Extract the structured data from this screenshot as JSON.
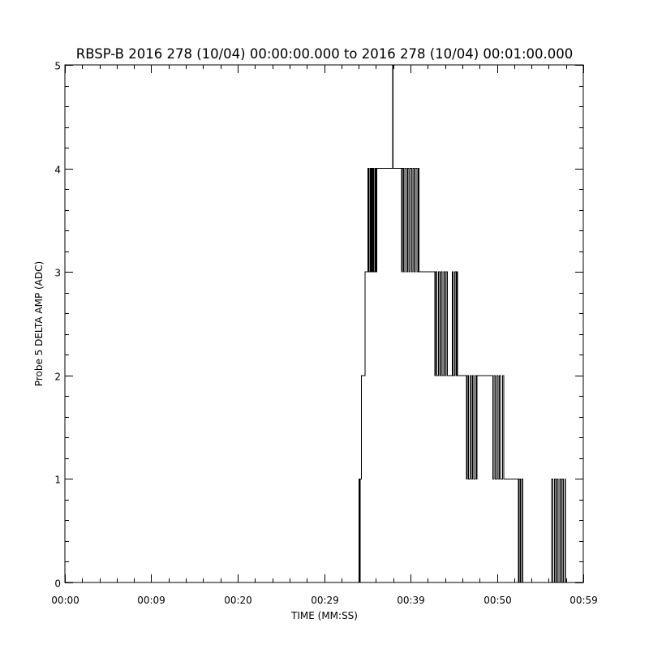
{
  "chart_data": {
    "type": "line",
    "title": "RBSP-B 2016 278 (10/04) 00:00:00.000 to 2016 278 (10/04) 00:01:00.000",
    "xlabel": "TIME (MM:SS)",
    "ylabel": "Probe 5 DELTA AMP (ADC)",
    "xlim": [
      0,
      59
    ],
    "ylim": [
      0,
      5
    ],
    "x_tick_labels": [
      "00:00",
      "00:09",
      "00:20",
      "00:29",
      "00:39",
      "00:50",
      "00:59"
    ],
    "x_tick_values": [
      0,
      9.83,
      19.67,
      29.5,
      39.33,
      49.17,
      59
    ],
    "y_tick_labels": [
      "0",
      "1",
      "2",
      "3",
      "4",
      "5"
    ],
    "y_tick_values": [
      0,
      1,
      2,
      3,
      4,
      5
    ],
    "grid": false,
    "line_color": "#000000",
    "series": [
      {
        "points": [
          [
            33.3,
            0
          ],
          [
            33.45,
            1
          ],
          [
            33.55,
            1
          ],
          [
            33.55,
            0
          ],
          [
            33.6,
            1
          ],
          [
            33.75,
            1
          ],
          [
            33.75,
            2
          ],
          [
            34.15,
            2
          ],
          [
            34.15,
            3
          ],
          [
            34.5,
            3
          ],
          [
            34.5,
            4
          ],
          [
            34.6,
            3
          ],
          [
            34.7,
            4
          ],
          [
            34.8,
            3
          ],
          [
            34.9,
            4
          ],
          [
            35.0,
            3
          ],
          [
            35.1,
            4
          ],
          [
            35.2,
            3
          ],
          [
            35.3,
            4
          ],
          [
            35.4,
            3
          ],
          [
            35.5,
            4
          ],
          [
            37.3,
            4
          ],
          [
            37.3,
            5
          ],
          [
            37.35,
            4
          ],
          [
            38.2,
            4
          ],
          [
            38.3,
            3
          ],
          [
            38.4,
            4
          ],
          [
            38.55,
            3
          ],
          [
            38.7,
            4
          ],
          [
            38.85,
            3
          ],
          [
            39.0,
            4
          ],
          [
            39.15,
            3
          ],
          [
            39.3,
            4
          ],
          [
            39.45,
            3
          ],
          [
            39.6,
            4
          ],
          [
            39.75,
            3
          ],
          [
            39.9,
            4
          ],
          [
            40.05,
            3
          ],
          [
            40.2,
            4
          ],
          [
            40.3,
            3
          ],
          [
            42.0,
            3
          ],
          [
            42.1,
            2
          ],
          [
            42.2,
            3
          ],
          [
            42.35,
            2
          ],
          [
            42.5,
            3
          ],
          [
            42.65,
            2
          ],
          [
            42.8,
            3
          ],
          [
            42.95,
            2
          ],
          [
            43.1,
            3
          ],
          [
            43.25,
            2
          ],
          [
            43.4,
            3
          ],
          [
            43.55,
            2
          ],
          [
            44.1,
            3
          ],
          [
            44.2,
            2
          ],
          [
            44.35,
            3
          ],
          [
            44.5,
            2
          ],
          [
            44.6,
            3
          ],
          [
            44.7,
            2
          ],
          [
            45.6,
            2
          ],
          [
            45.7,
            1
          ],
          [
            45.8,
            2
          ],
          [
            45.95,
            1
          ],
          [
            46.1,
            2
          ],
          [
            46.25,
            1
          ],
          [
            46.4,
            2
          ],
          [
            46.55,
            1
          ],
          [
            46.7,
            2
          ],
          [
            46.85,
            1
          ],
          [
            46.9,
            2
          ],
          [
            48.6,
            2
          ],
          [
            48.7,
            1
          ],
          [
            48.85,
            2
          ],
          [
            49.0,
            1
          ],
          [
            49.15,
            2
          ],
          [
            49.3,
            1
          ],
          [
            49.45,
            2
          ],
          [
            49.6,
            1
          ],
          [
            49.8,
            2
          ],
          [
            49.95,
            1
          ],
          [
            51.5,
            1
          ],
          [
            51.6,
            0
          ],
          [
            51.7,
            1
          ],
          [
            51.85,
            0
          ],
          [
            52.0,
            1
          ],
          [
            52.1,
            0
          ],
          [
            55.3,
            0
          ],
          [
            55.4,
            1
          ],
          [
            55.55,
            0
          ],
          [
            55.7,
            1
          ],
          [
            55.85,
            0
          ],
          [
            56.0,
            1
          ],
          [
            56.15,
            0
          ],
          [
            56.3,
            1
          ],
          [
            56.45,
            0
          ],
          [
            56.6,
            1
          ],
          [
            56.75,
            0
          ],
          [
            56.9,
            1
          ],
          [
            56.95,
            0
          ]
        ]
      }
    ]
  }
}
